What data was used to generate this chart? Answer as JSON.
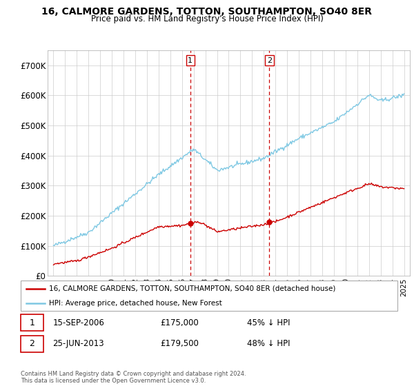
{
  "title": "16, CALMORE GARDENS, TOTTON, SOUTHAMPTON, SO40 8ER",
  "subtitle": "Price paid vs. HM Land Registry's House Price Index (HPI)",
  "hpi_color": "#7ec8e3",
  "price_color": "#cc0000",
  "marker_color": "#cc0000",
  "vline_color": "#cc0000",
  "background_color": "#ffffff",
  "grid_color": "#cccccc",
  "transaction1": {
    "date_x": 2006.71,
    "price": 175000,
    "label": "1"
  },
  "transaction2": {
    "date_x": 2013.48,
    "price": 179500,
    "label": "2"
  },
  "xlim": [
    1994.5,
    2025.5
  ],
  "ylim": [
    0,
    750000
  ],
  "yticks": [
    0,
    100000,
    200000,
    300000,
    400000,
    500000,
    600000,
    700000
  ],
  "ytick_labels": [
    "£0",
    "£100K",
    "£200K",
    "£300K",
    "£400K",
    "£500K",
    "£600K",
    "£700K"
  ],
  "xticks": [
    1995,
    1996,
    1997,
    1998,
    1999,
    2000,
    2001,
    2002,
    2003,
    2004,
    2005,
    2006,
    2007,
    2008,
    2009,
    2010,
    2011,
    2012,
    2013,
    2014,
    2015,
    2016,
    2017,
    2018,
    2019,
    2020,
    2021,
    2022,
    2023,
    2024,
    2025
  ],
  "legend_label1": "16, CALMORE GARDENS, TOTTON, SOUTHAMPTON, SO40 8ER (detached house)",
  "legend_label2": "HPI: Average price, detached house, New Forest",
  "annot1_label": "1",
  "annot1_date": "15-SEP-2006",
  "annot1_price": "£175,000",
  "annot1_pct": "45% ↓ HPI",
  "annot2_label": "2",
  "annot2_date": "25-JUN-2013",
  "annot2_price": "£179,500",
  "annot2_pct": "48% ↓ HPI",
  "copyright": "Contains HM Land Registry data © Crown copyright and database right 2024.\nThis data is licensed under the Open Government Licence v3.0."
}
